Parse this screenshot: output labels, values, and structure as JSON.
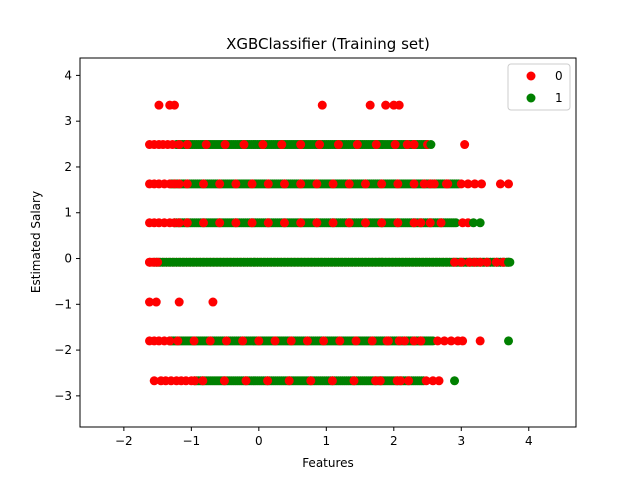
{
  "chart_data": {
    "type": "scatter",
    "title": "XGBClassifier (Training set)",
    "xlabel": "Features",
    "ylabel": "Estimated Salary",
    "xlim": [
      -2.65,
      4.7
    ],
    "ylim": [
      -3.68,
      4.38
    ],
    "xticks": [
      -2,
      -1,
      0,
      1,
      2,
      3,
      4
    ],
    "yticks": [
      -3,
      -2,
      -1,
      0,
      1,
      2,
      3,
      4
    ],
    "grid": false,
    "legend_position": "top-right",
    "series": [
      {
        "name": "0",
        "color": "#ff0000",
        "points": [
          [
            -1.48,
            3.35
          ],
          [
            -1.32,
            3.35
          ],
          [
            -1.25,
            3.35
          ],
          [
            0.94,
            3.35
          ],
          [
            1.65,
            3.35
          ],
          [
            1.88,
            3.35
          ],
          [
            2.0,
            3.35
          ],
          [
            2.08,
            3.35
          ],
          [
            -1.62,
            2.49
          ],
          [
            -1.55,
            2.49
          ],
          [
            -1.48,
            2.49
          ],
          [
            -1.42,
            2.49
          ],
          [
            -1.35,
            2.49
          ],
          [
            -1.28,
            2.49
          ],
          [
            -1.18,
            2.49
          ],
          [
            2.2,
            2.49
          ],
          [
            2.3,
            2.49
          ],
          [
            2.5,
            2.49
          ],
          [
            3.05,
            2.49
          ],
          [
            -1.62,
            1.63
          ],
          [
            -1.55,
            1.63
          ],
          [
            -1.48,
            1.63
          ],
          [
            -1.4,
            1.63
          ],
          [
            -1.32,
            1.63
          ],
          [
            -1.25,
            1.63
          ],
          [
            -1.18,
            1.63
          ],
          [
            2.45,
            1.63
          ],
          [
            2.6,
            1.63
          ],
          [
            2.8,
            1.63
          ],
          [
            3.0,
            1.63
          ],
          [
            3.1,
            1.63
          ],
          [
            3.2,
            1.63
          ],
          [
            3.3,
            1.63
          ],
          [
            3.58,
            1.63
          ],
          [
            3.7,
            1.63
          ],
          [
            -1.62,
            0.78
          ],
          [
            -1.55,
            0.78
          ],
          [
            -1.48,
            0.78
          ],
          [
            -1.4,
            0.78
          ],
          [
            -1.32,
            0.78
          ],
          [
            -1.25,
            0.78
          ],
          [
            -1.18,
            0.78
          ],
          [
            2.4,
            0.78
          ],
          [
            2.7,
            0.78
          ],
          [
            3.02,
            0.78
          ],
          [
            3.1,
            0.78
          ],
          [
            -1.62,
            -0.08
          ],
          [
            -1.6,
            -0.08
          ],
          [
            -1.55,
            -0.08
          ],
          [
            -1.5,
            -0.08
          ],
          [
            2.9,
            -0.08
          ],
          [
            3.0,
            -0.08
          ],
          [
            3.12,
            -0.08
          ],
          [
            3.2,
            -0.08
          ],
          [
            3.28,
            -0.08
          ],
          [
            3.38,
            -0.08
          ],
          [
            3.52,
            -0.08
          ],
          [
            3.62,
            -0.08
          ],
          [
            -1.62,
            -0.95
          ],
          [
            -1.52,
            -0.95
          ],
          [
            -1.18,
            -0.95
          ],
          [
            -0.68,
            -0.95
          ],
          [
            -1.62,
            -1.8
          ],
          [
            -1.55,
            -1.8
          ],
          [
            -1.48,
            -1.8
          ],
          [
            -1.4,
            -1.8
          ],
          [
            -1.32,
            -1.8
          ],
          [
            1.9,
            -1.8
          ],
          [
            2.08,
            -1.8
          ],
          [
            2.3,
            -1.8
          ],
          [
            2.4,
            -1.8
          ],
          [
            2.65,
            -1.8
          ],
          [
            2.75,
            -1.8
          ],
          [
            2.85,
            -1.8
          ],
          [
            2.95,
            -1.8
          ],
          [
            3.02,
            -1.8
          ],
          [
            3.28,
            -1.8
          ],
          [
            -1.55,
            -2.67
          ],
          [
            -1.45,
            -2.67
          ],
          [
            -1.38,
            -2.67
          ],
          [
            -1.3,
            -2.67
          ],
          [
            -1.22,
            -2.67
          ],
          [
            -1.15,
            -2.67
          ],
          [
            -1.08,
            -2.67
          ],
          [
            -1.0,
            -2.67
          ],
          [
            -0.95,
            -2.67
          ],
          [
            1.8,
            -2.67
          ],
          [
            2.1,
            -2.67
          ],
          [
            2.22,
            -2.67
          ],
          [
            2.48,
            -2.67
          ],
          [
            2.58,
            -2.67
          ],
          [
            2.67,
            -2.67
          ]
        ],
        "ranges": [
          {
            "y": 2.49,
            "x_from": -1.18,
            "x_to": 2.3,
            "step": 0.04,
            "every": 7
          },
          {
            "y": 1.63,
            "x_from": -1.18,
            "x_to": 2.95,
            "step": 0.04,
            "every": 6
          },
          {
            "y": 0.78,
            "x_from": -1.18,
            "x_to": 2.65,
            "step": 0.04,
            "every": 6
          },
          {
            "y": -1.8,
            "x_from": -1.32,
            "x_to": 2.45,
            "step": 0.04,
            "every": 6
          },
          {
            "y": -2.67,
            "x_from": -0.95,
            "x_to": 2.3,
            "step": 0.04,
            "every": 8
          }
        ]
      },
      {
        "name": "1",
        "color": "#008000",
        "points": [
          [
            2.55,
            2.49
          ],
          [
            3.18,
            0.78
          ],
          [
            3.28,
            0.78
          ],
          [
            3.7,
            -0.08
          ],
          [
            3.72,
            -0.08
          ],
          [
            3.7,
            -1.8
          ],
          [
            2.9,
            -2.67
          ]
        ],
        "ranges": [
          {
            "y": 2.49,
            "x_from": -1.22,
            "x_to": 2.5,
            "step": 0.03
          },
          {
            "y": 1.63,
            "x_from": -1.3,
            "x_to": 2.98,
            "step": 0.03
          },
          {
            "y": 0.78,
            "x_from": -1.25,
            "x_to": 2.92,
            "step": 0.03
          },
          {
            "y": -0.08,
            "x_from": -1.55,
            "x_to": 3.72,
            "step": 0.03
          },
          {
            "y": -1.8,
            "x_from": -1.32,
            "x_to": 2.58,
            "step": 0.03
          },
          {
            "y": -2.67,
            "x_from": -0.95,
            "x_to": 2.45,
            "step": 0.03
          }
        ]
      }
    ],
    "background_red_zero_row": {
      "y": -0.08,
      "x_from": -1.62,
      "x_to": 3.7,
      "step": 0.05
    }
  }
}
